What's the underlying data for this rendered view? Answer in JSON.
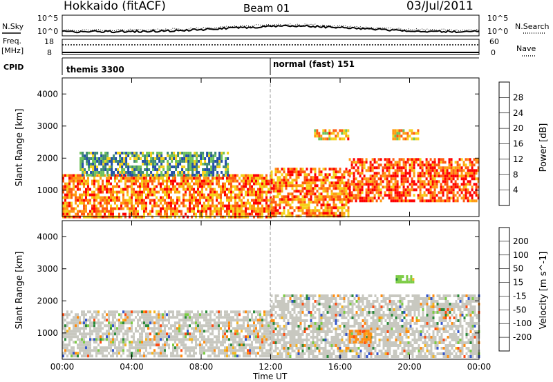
{
  "header": {
    "station": "Hokkaido (fitACF)",
    "beam": "Beam 01",
    "date": "03/Jul/2011"
  },
  "strips": {
    "nsky_label": "N.Sky",
    "nsearch_label": "N.Search",
    "nsky_ticks": [
      "10^5",
      "10^0"
    ],
    "nsearch_ticks": [
      "10^5",
      "10^0"
    ],
    "freq_label": "Freq.",
    "freq_unit": "[MHz]",
    "freq_ticks": [
      "18",
      "8"
    ],
    "nave_label": "Nave",
    "nave_ticks": [
      "60",
      "0"
    ],
    "cpid_label": "CPID",
    "cpid_modes": [
      "themis 3300",
      "normal (fast) 151"
    ]
  },
  "axes": {
    "xlabel": "Time UT",
    "ylabel": "Slant Range [km]",
    "x_ticks": [
      "00:00",
      "04:00",
      "08:00",
      "12:00",
      "16:00",
      "20:00",
      "00:00"
    ],
    "y_ticks": [
      "1000",
      "2000",
      "3000",
      "4000"
    ]
  },
  "colorbars": {
    "power": {
      "label": "Power [dB]",
      "ticks": [
        "28",
        "24",
        "20",
        "16",
        "12",
        "8",
        "4"
      ],
      "colors": [
        "#0000ff",
        "#224fa8",
        "#3f8a74",
        "#6fc25a",
        "#f5d21a",
        "#ff9a12",
        "#ff5a10",
        "#ff0000"
      ]
    },
    "velocity": {
      "label": "Velocity [m s^-1]",
      "ticks": [
        "200",
        "100",
        "50",
        "15",
        "-15",
        "-50",
        "-100",
        "-200"
      ],
      "colors": [
        "#2233aa",
        "#3355cc",
        "#2a8a3a",
        "#7ccc44",
        "#c8c8c0",
        "#f5b420",
        "#ff8c10",
        "#ff4a10",
        "#ff0000"
      ]
    }
  },
  "chart_data": [
    {
      "type": "heatmap",
      "title": "Power",
      "ylabel": "Slant Range [km]",
      "xlabel": "Time UT",
      "xlim": [
        0,
        24
      ],
      "ylim": [
        180,
        4500
      ],
      "colorbar_label": "Power [dB]",
      "colorbar_range": [
        0,
        30
      ],
      "echo_bands": [
        {
          "t0": 0.0,
          "t1": 12.0,
          "r0": 200,
          "r1": 1500,
          "power": 22
        },
        {
          "t0": 1.0,
          "t1": 9.5,
          "r0": 1500,
          "r1": 2200,
          "power": 11
        },
        {
          "t0": 12.0,
          "t1": 16.5,
          "r0": 200,
          "r1": 1700,
          "power": 22
        },
        {
          "t0": 16.5,
          "t1": 24.0,
          "r0": 700,
          "r1": 2000,
          "power": 25
        },
        {
          "t0": 14.5,
          "t1": 16.5,
          "r0": 2600,
          "r1": 2900,
          "power": 20
        },
        {
          "t0": 19.0,
          "t1": 20.5,
          "r0": 2600,
          "r1": 2900,
          "power": 19
        }
      ]
    },
    {
      "type": "heatmap",
      "title": "Velocity",
      "ylabel": "Slant Range [km]",
      "xlabel": "Time UT",
      "xlim": [
        0,
        24
      ],
      "ylim": [
        180,
        4500
      ],
      "colorbar_label": "Velocity [m s^-1]",
      "colorbar_range": [
        -200,
        200
      ],
      "echo_bands": [
        {
          "t0": 0.0,
          "t1": 12.0,
          "r0": 250,
          "r1": 1700,
          "velocity": 0
        },
        {
          "t0": 12.0,
          "t1": 24.0,
          "r0": 300,
          "r1": 2200,
          "velocity": 0
        },
        {
          "t0": 16.5,
          "t1": 17.8,
          "r0": 700,
          "r1": 1100,
          "velocity": -60
        },
        {
          "t0": 19.2,
          "t1": 20.2,
          "r0": 2600,
          "r1": 2800,
          "velocity": 40
        }
      ]
    }
  ]
}
